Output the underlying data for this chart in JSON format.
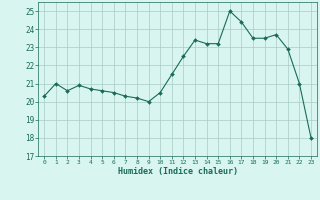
{
  "x": [
    0,
    1,
    2,
    3,
    4,
    5,
    6,
    7,
    8,
    9,
    10,
    11,
    12,
    13,
    14,
    15,
    16,
    17,
    18,
    19,
    20,
    21,
    22,
    23
  ],
  "y": [
    20.3,
    21.0,
    20.6,
    20.9,
    20.7,
    20.6,
    20.5,
    20.3,
    20.2,
    20.0,
    20.5,
    21.5,
    22.5,
    23.4,
    23.2,
    23.2,
    25.0,
    24.4,
    23.5,
    23.5,
    23.7,
    22.9,
    21.0,
    18.0
  ],
  "xlabel": "Humidex (Indice chaleur)",
  "xlim": [
    -0.5,
    23.5
  ],
  "ylim": [
    17,
    25.5
  ],
  "yticks": [
    17,
    18,
    19,
    20,
    21,
    22,
    23,
    24,
    25
  ],
  "xticks": [
    0,
    1,
    2,
    3,
    4,
    5,
    6,
    7,
    8,
    9,
    10,
    11,
    12,
    13,
    14,
    15,
    16,
    17,
    18,
    19,
    20,
    21,
    22,
    23
  ],
  "line_color": "#1a6b5a",
  "marker_color": "#1a6b5a",
  "bg_color": "#d8f5f0",
  "grid_color": "#a8ccc4",
  "label_color": "#1a6b5a",
  "tick_color": "#1a6b5a"
}
